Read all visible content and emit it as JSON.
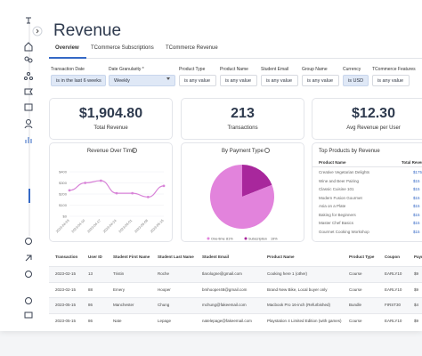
{
  "header": {
    "title": "Revenue"
  },
  "tabs": [
    "Overview",
    "TCommerce Subscriptions",
    "TCommerce Revenue"
  ],
  "filters": [
    {
      "label": "Transaction Date",
      "value": "is in the last 6 weeks"
    },
    {
      "label": "Date Granularity *",
      "value": "Weekly"
    },
    {
      "label": "Product Type",
      "value": "is any value"
    },
    {
      "label": "Product Name",
      "value": "is any value"
    },
    {
      "label": "Student Email",
      "value": "is any value"
    },
    {
      "label": "Group Name",
      "value": "is any value"
    },
    {
      "label": "Currency",
      "value": "is USD"
    },
    {
      "label": "TCommerce Features",
      "value": "is any value"
    }
  ],
  "kpis": [
    {
      "value": "$1,904.80",
      "label": "Total Revenue"
    },
    {
      "value": "213",
      "label": "Transactions"
    },
    {
      "value": "$12.30",
      "label": "Avg Revenue per User"
    }
  ],
  "chart_data": [
    {
      "type": "line",
      "title": "Revenue Over Time",
      "x": [
        "2023-04-03",
        "2023-04-10",
        "2023-04-17",
        "2023-04-24",
        "2023-05-01",
        "2023-05-08",
        "2023-05-15"
      ],
      "values": [
        233,
        300,
        320,
        207,
        207,
        173,
        273
      ],
      "color": "#d884d8",
      "ylim": [
        0,
        400
      ],
      "yticks": [
        {
          "value": 0,
          "label": "$0"
        },
        {
          "value": 100,
          "label": "$100"
        },
        {
          "value": 200,
          "label": "$200"
        },
        {
          "value": 300,
          "label": "$300"
        },
        {
          "value": 400,
          "label": "$400"
        }
      ]
    },
    {
      "type": "pie",
      "title": "By Payment Type",
      "categories": [
        "One-time",
        "Subscription"
      ],
      "values": [
        81,
        19
      ],
      "value_labels": [
        "81%",
        "19%"
      ],
      "colors": [
        "#e283dc",
        "#a8279c"
      ]
    }
  ],
  "top_products": {
    "title": "Top Products by Revenue",
    "columns": [
      "Product Name",
      "Total Reven"
    ],
    "rows": [
      [
        "Creative Vegetarian Delights",
        "$175"
      ],
      [
        "Wine and Beer Pairing",
        "$15"
      ],
      [
        "Classic Cuisine 101",
        "$15"
      ],
      [
        "Modern Fusion Gourmet",
        "$15"
      ],
      [
        "Asia on a Plate",
        "$15"
      ],
      [
        "Baking for Beginners",
        "$15"
      ],
      [
        "Master Chef Basics",
        "$15"
      ],
      [
        "Gourmet Cooking Workshop",
        "$15"
      ]
    ]
  },
  "table": {
    "columns": [
      "Transaction",
      "User ID",
      "Student First Name",
      "Student Last Name",
      "Student Email",
      "Product Name",
      "Product Type",
      "Coupon",
      "Payn"
    ],
    "rows": [
      [
        "2023-02-15",
        "13",
        "Tristin",
        "Roche",
        "tlarologne@gmail.com",
        "Cooking here 1 (other)",
        "Course",
        "EARLY10",
        "$9"
      ],
      [
        "2023-02-15",
        "88",
        "Emery",
        "Hooper",
        "bmhooper48@gmail.com",
        "Brand New Bike, Local buyer only",
        "Course",
        "EARLY10",
        "$9"
      ],
      [
        "2023-05-15",
        "86",
        "Manchester",
        "Chung",
        "mchung@fakeemail.com",
        "Macbook Pro 16-inch (Refurbished)",
        "Bundle",
        "FIRST30",
        "$4"
      ],
      [
        "2023-05-15",
        "86",
        "Nate",
        "Lepage",
        "natelepage@fakeemail.com",
        "Playstation 4 Limited Edition (with games)",
        "Course",
        "EARLY10",
        "$9"
      ]
    ]
  }
}
